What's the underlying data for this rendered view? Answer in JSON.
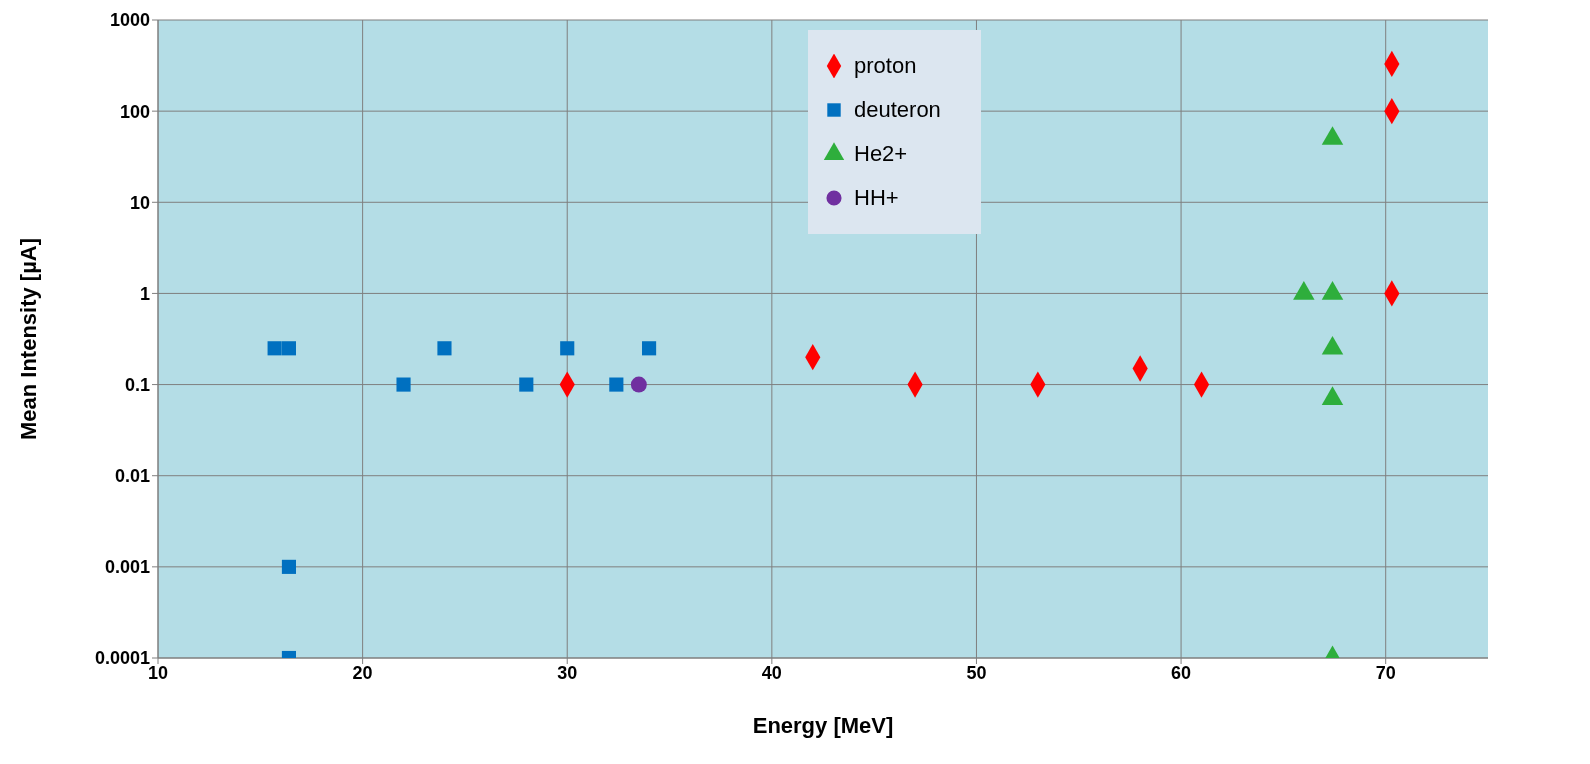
{
  "chart_data": {
    "type": "scatter",
    "xlabel": "Energy [MeV]",
    "ylabel": "Mean Intensity [µA]",
    "log": "y",
    "grid": true,
    "legend": "top",
    "xlim": [
      10,
      75
    ],
    "xticks": [
      10,
      20,
      30,
      40,
      50,
      60,
      70
    ],
    "ylim": [
      0.0001,
      1000
    ],
    "yticks": [
      0.0001,
      0.001,
      0.01,
      0.1,
      1,
      10,
      100,
      1000
    ],
    "series": [
      {
        "name": "proton",
        "color": "#ff0000",
        "marker": "diamond",
        "x": [
          30,
          42,
          47,
          53,
          58,
          61,
          70.3,
          70.3,
          70.3
        ],
        "values": [
          0.1,
          0.2,
          0.1,
          0.1,
          0.15,
          0.1,
          1,
          100,
          330
        ]
      },
      {
        "name": "deuteron",
        "color": "#0070c0",
        "marker": "square",
        "x": [
          15.7,
          16.4,
          16.4,
          16.4,
          22,
          24,
          28,
          30,
          32.4,
          34
        ],
        "values": [
          0.25,
          0.25,
          0.001,
          0.0001,
          0.1,
          0.25,
          0.1,
          0.25,
          0.1,
          0.25
        ]
      },
      {
        "name": "He2+",
        "color": "#2eae3c",
        "marker": "triangle",
        "x": [
          66,
          67.4,
          67.4,
          67.4,
          67.4,
          67.4
        ],
        "values": [
          1,
          1,
          50,
          0.25,
          0.07,
          0.0001
        ]
      },
      {
        "name": "HH+",
        "color": "#7030a0",
        "marker": "circle",
        "x": [
          33.5
        ],
        "values": [
          0.1
        ]
      }
    ]
  }
}
